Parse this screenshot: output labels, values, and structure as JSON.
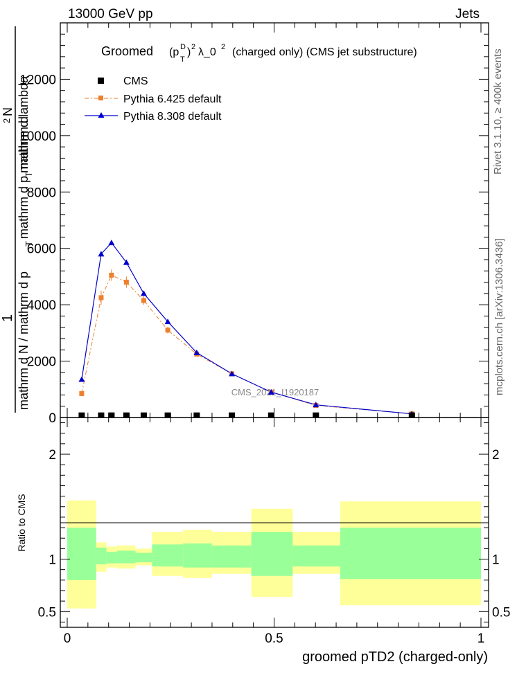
{
  "header": {
    "left": "13000 GeV pp",
    "right": "Jets"
  },
  "side_labels": {
    "rivet": "Rivet 3.1.10, ≥ 400k events",
    "mcplots": "mcplots.cern.ch [arXiv:1306.3436]"
  },
  "watermark": "CMS_2021_I1920187",
  "colors": {
    "cms": "#000000",
    "pythia6": "#ee7f2d",
    "pythia8": "#0000cc",
    "band_inner": "#99ff99",
    "band_outer": "#ffff99"
  },
  "chart_data": [
    {
      "type": "line",
      "title_parts": {
        "prefix": "Groomed",
        "p": "(p",
        "sup_d": "D",
        "sub_t": "T",
        "close": ")",
        "sup_2a": "2",
        "lambda": "λ_0",
        "sup_2b": "2",
        "suffix": "(charged only) (CMS jet substructure)"
      },
      "ylabel_parts": {
        "one": "1",
        "den": "mathrm d N / mathrm d p",
        "den_sub": "T",
        "num": "mathrm d",
        "num_sup": "2",
        "num_n": "N",
        "num_den": "mathrm d p",
        "num_den_sub": "T",
        "num_den_tail": " mathrm d lambda"
      },
      "xlim": [
        0,
        1
      ],
      "ylim": [
        0,
        14000
      ],
      "yticks": [
        0,
        2000,
        4000,
        6000,
        8000,
        10000,
        12000
      ],
      "ytick_labels": [
        "0",
        "2000",
        "4000",
        "6000",
        "8000",
        "10000",
        "12000"
      ],
      "legend": [
        {
          "label": "CMS",
          "marker": "square",
          "line": "none"
        },
        {
          "label": "Pythia 6.425 default",
          "marker": "square",
          "line": "dashdot"
        },
        {
          "label": "Pythia 8.308 default",
          "marker": "triangle",
          "line": "solid"
        }
      ],
      "series": [
        {
          "name": "CMS",
          "x": [
            0.035,
            0.082,
            0.107,
            0.143,
            0.185,
            0.243,
            0.313,
            0.398,
            0.493,
            0.601,
            0.833
          ],
          "y": [
            20,
            20,
            20,
            20,
            20,
            20,
            20,
            20,
            20,
            20,
            20
          ]
        },
        {
          "name": "Pythia 6.425 default",
          "x": [
            0.035,
            0.082,
            0.107,
            0.143,
            0.185,
            0.243,
            0.313,
            0.398,
            0.493,
            0.601,
            0.833
          ],
          "y": [
            850,
            4250,
            5050,
            4800,
            4150,
            3100,
            2250,
            1550,
            900,
            430,
            130
          ],
          "yerr": [
            0,
            250,
            200,
            200,
            150,
            120,
            80,
            50,
            30,
            20,
            10
          ]
        },
        {
          "name": "Pythia 8.308 default",
          "x": [
            0.035,
            0.082,
            0.107,
            0.143,
            0.185,
            0.243,
            0.313,
            0.398,
            0.493,
            0.601,
            0.833
          ],
          "y": [
            1350,
            5800,
            6200,
            5500,
            4400,
            3400,
            2300,
            1550,
            900,
            450,
            130
          ]
        }
      ]
    },
    {
      "type": "area",
      "ylabel": "Ratio to CMS",
      "xlabel": "groomed pTD2 (charged-only)",
      "xlim": [
        0,
        1
      ],
      "ylim": [
        0.35,
        2.35
      ],
      "yticks": [
        0.5,
        1,
        2
      ],
      "ytick_labels": [
        "0.5",
        "1",
        "2"
      ],
      "xticks": [
        0,
        0.5,
        1
      ],
      "xtick_labels": [
        "0",
        "0.5",
        "1"
      ],
      "bins": [
        0,
        0.07,
        0.095,
        0.12,
        0.165,
        0.205,
        0.28,
        0.35,
        0.445,
        0.545,
        0.66,
        1.0
      ],
      "inner_lo": [
        0.8,
        0.95,
        0.96,
        0.96,
        0.97,
        0.93,
        0.92,
        0.92,
        0.84,
        0.93,
        0.81
      ],
      "inner_hi": [
        1.3,
        1.11,
        1.07,
        1.08,
        1.06,
        1.14,
        1.15,
        1.13,
        1.26,
        1.13,
        1.3
      ],
      "outer_lo": [
        0.53,
        0.88,
        0.92,
        0.91,
        0.94,
        0.84,
        0.82,
        0.86,
        0.64,
        0.86,
        0.56
      ],
      "outer_hi": [
        1.56,
        1.16,
        1.12,
        1.13,
        1.1,
        1.26,
        1.28,
        1.26,
        1.48,
        1.26,
        1.55
      ]
    }
  ]
}
